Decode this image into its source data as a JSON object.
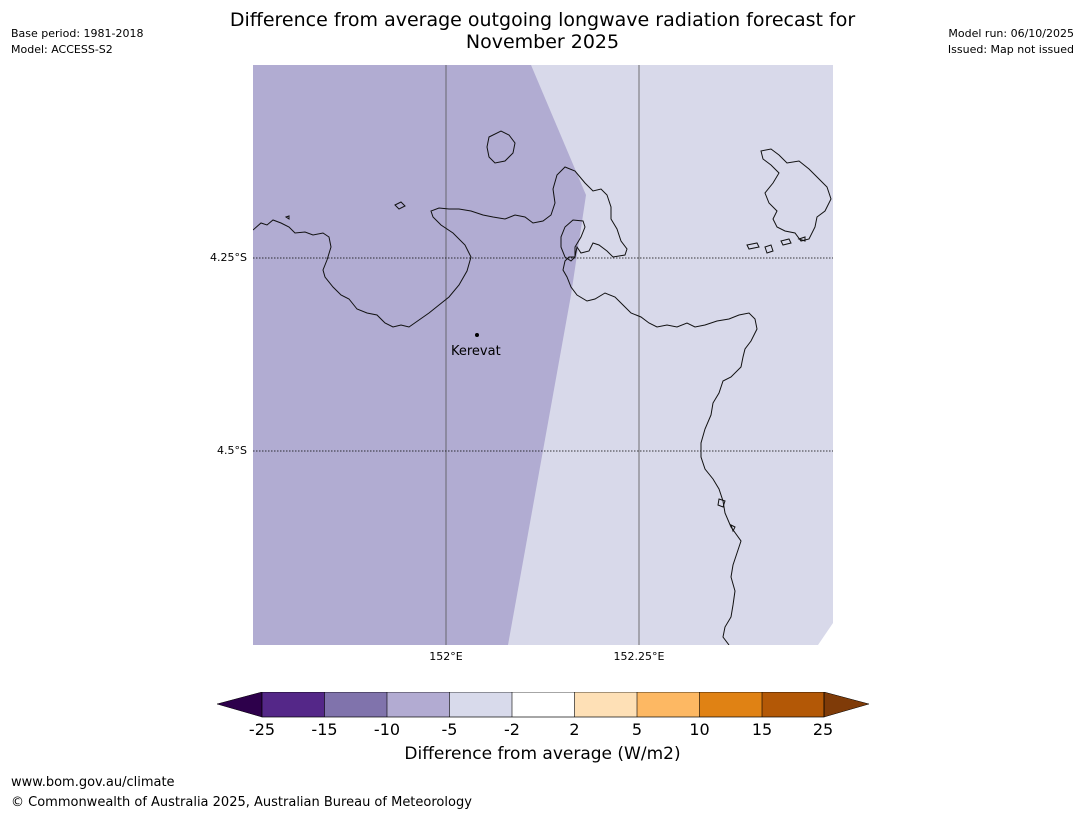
{
  "header": {
    "base_period": "Base period: 1981-2018",
    "model": "Model: ACCESS-S2",
    "model_run": "Model run: 06/10/2025",
    "issued": "Issued: Map not issued",
    "title_line1": "Difference from average outgoing longwave radiation forecast for",
    "title_line2": "November 2025"
  },
  "map": {
    "latitude_labels": [
      "4.25°S",
      "4.5°S"
    ],
    "longitude_labels": [
      "152°E",
      "152.25°E"
    ],
    "place_label": "Kerevat",
    "fill_colors": {
      "category_-10_to_-5": "#b1acd2",
      "category_-5_to_-2": "#d8d9ea"
    }
  },
  "colorbar": {
    "title": "Difference from average (W/m2)",
    "ticks": [
      "-25",
      "-15",
      "-10",
      "-5",
      "-2",
      "2",
      "5",
      "10",
      "15",
      "25"
    ],
    "colors": [
      "#2d004b",
      "#542788",
      "#8073ac",
      "#b2abd2",
      "#d8daeb",
      "#ffffff",
      "#fee0b6",
      "#fdb863",
      "#e08214",
      "#b35806",
      "#7f3b08"
    ]
  },
  "footer": {
    "url": "www.bom.gov.au/climate",
    "copyright": "© Commonwealth of Australia 2025, Australian Bureau of Meteorology"
  }
}
